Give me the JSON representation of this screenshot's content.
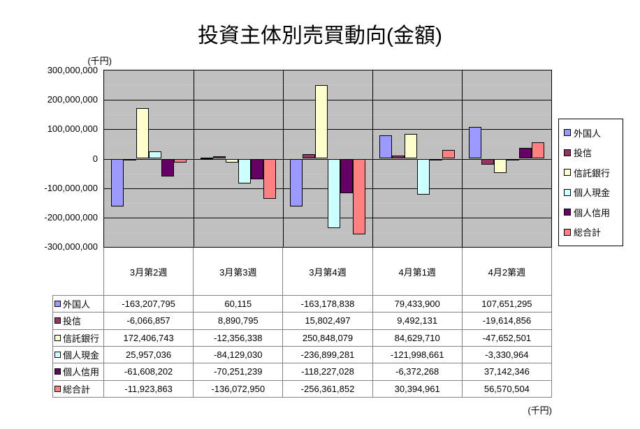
{
  "labels": {
    "unit_top": "(千円)",
    "unit_bottom": "(千円)"
  },
  "chart_data": {
    "type": "bar",
    "title": "投資主体別売買動向(金額)",
    "unit_label": "(千円)",
    "categories": [
      "3月第2週",
      "3月第3週",
      "3月第4週",
      "4月第1週",
      "4月2第週"
    ],
    "series": [
      {
        "name": "外国人",
        "color": "#9999FF",
        "values": [
          -163207795,
          60115,
          -163178838,
          79433900,
          107651295
        ]
      },
      {
        "name": "投信",
        "color": "#993366",
        "values": [
          -6066857,
          8890795,
          15802497,
          9492131,
          -19614856
        ]
      },
      {
        "name": "信託銀行",
        "color": "#FFFFCC",
        "values": [
          172406743,
          -12356338,
          250848079,
          84629710,
          -47652501
        ]
      },
      {
        "name": "個人現金",
        "color": "#CCFFFF",
        "values": [
          25957036,
          -84129030,
          -236899281,
          -121998661,
          -3330964
        ]
      },
      {
        "name": "個人信用",
        "color": "#660066",
        "values": [
          -61608202,
          -70251239,
          -118227028,
          -6372268,
          37142346
        ]
      },
      {
        "name": "総合計",
        "color": "#FF8080",
        "values": [
          -11923863,
          -136072950,
          -256361852,
          30394961,
          56570504
        ]
      }
    ],
    "ylim": [
      -300000000,
      300000000
    ],
    "ytick_step": 100000000,
    "grid": true,
    "legend_position": "right",
    "plot_bg": "#C0C0C0",
    "xlabel": "",
    "ylabel": ""
  }
}
